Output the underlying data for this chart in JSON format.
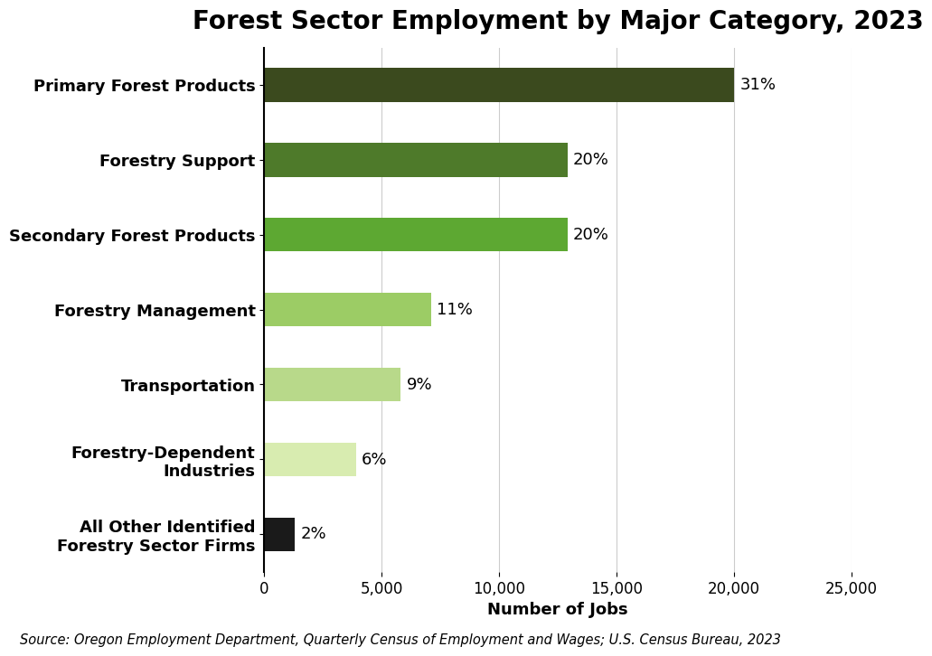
{
  "title": "Forest Sector Employment by Major Category, 2023",
  "categories": [
    "Primary Forest Products",
    "Forestry Support",
    "Secondary Forest Products",
    "Forestry Management",
    "Transportation",
    "Forestry-Dependent\nIndustries",
    "All Other Identified\nForestry Sector Firms"
  ],
  "values": [
    20000,
    12900,
    12900,
    7100,
    5800,
    3900,
    1300
  ],
  "percentages": [
    "31%",
    "20%",
    "20%",
    "11%",
    "9%",
    "6%",
    "2%"
  ],
  "colors": [
    "#3b4a1e",
    "#4e7a2a",
    "#5da832",
    "#9ccc65",
    "#b8d98a",
    "#d8ecb0",
    "#1a1a1a"
  ],
  "xlabel": "Number of Jobs",
  "xlim": [
    0,
    25000
  ],
  "xticks": [
    0,
    5000,
    10000,
    15000,
    20000,
    25000
  ],
  "source": "Source: Oregon Employment Department, Quarterly Census of Employment and Wages; U.S. Census Bureau, 2023",
  "background_color": "#ffffff",
  "title_fontsize": 20,
  "label_fontsize": 13,
  "tick_fontsize": 12,
  "source_fontsize": 10.5,
  "bar_height": 0.45
}
